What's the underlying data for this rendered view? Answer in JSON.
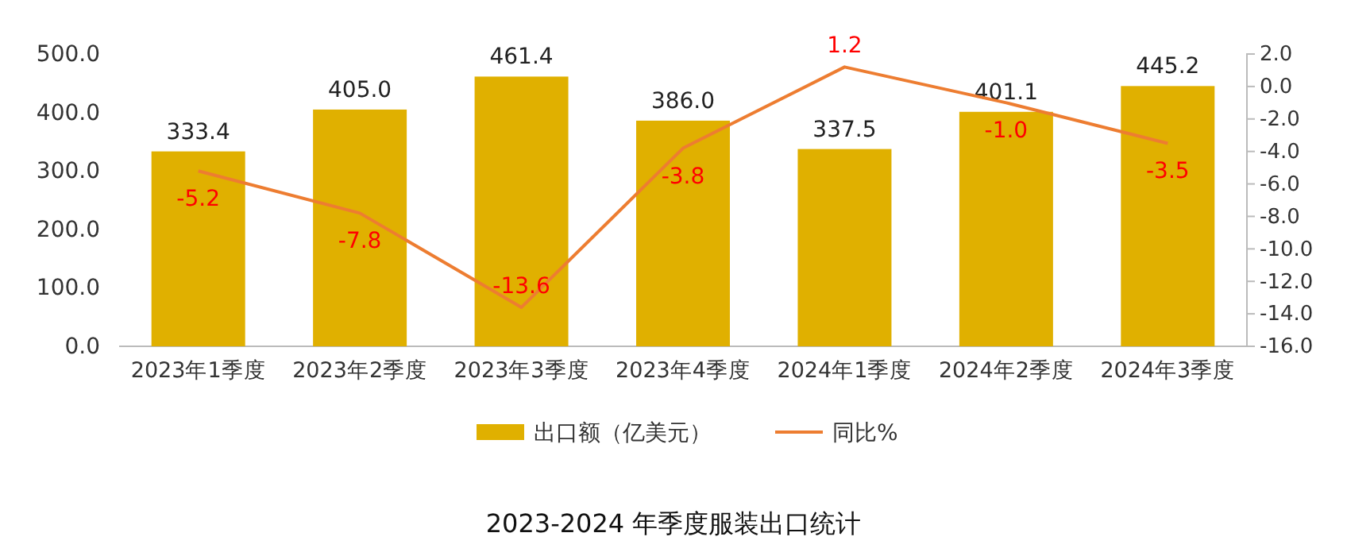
{
  "chart_data": {
    "type": "bar",
    "title": "2023-2024 年季度服装出口统计",
    "categories": [
      "2023年1季度",
      "2023年2季度",
      "2023年3季度",
      "2023年4季度",
      "2024年1季度",
      "2024年2季度",
      "2024年3季度"
    ],
    "series": [
      {
        "name": "出口额（亿美元）",
        "color": "#e0b000",
        "values": [
          333.4,
          405.0,
          461.4,
          386.0,
          337.5,
          401.1,
          445.2
        ],
        "value_labels": [
          "333.4",
          "405.0",
          "461.4",
          "386.0",
          "337.5",
          "401.1",
          "445.2"
        ]
      },
      {
        "name": "同比%",
        "type": "line",
        "axis": "y2",
        "color": "#ed7d31",
        "values": [
          -5.2,
          -7.8,
          -13.6,
          -3.8,
          1.2,
          -1.0,
          -3.5
        ],
        "value_labels": [
          "-5.2",
          "-7.8",
          "-13.6",
          "-3.8",
          "1.2",
          "-1.0",
          "-3.5"
        ]
      }
    ],
    "ylim": [
      0,
      500
    ],
    "yticks": [
      {
        "value": 0,
        "label": "0.0"
      },
      {
        "value": 100,
        "label": "100.0"
      },
      {
        "value": 200,
        "label": "200.0"
      },
      {
        "value": 300,
        "label": "300.0"
      },
      {
        "value": 400,
        "label": "400.0"
      },
      {
        "value": 500,
        "label": "500.0"
      }
    ],
    "y2lim": [
      -16,
      2
    ],
    "y2ticks": [
      {
        "value": -16,
        "label": "-16.0"
      },
      {
        "value": -14,
        "label": "-14.0"
      },
      {
        "value": -12,
        "label": "-12.0"
      },
      {
        "value": -10,
        "label": "-10.0"
      },
      {
        "value": -8,
        "label": "-8.0"
      },
      {
        "value": -6,
        "label": "-6.0"
      },
      {
        "value": -4,
        "label": "-4.0"
      },
      {
        "value": -2,
        "label": "-2.0"
      },
      {
        "value": 0,
        "label": "0.0"
      },
      {
        "value": 2,
        "label": "2.0"
      }
    ],
    "legend": "bottom",
    "grid": false,
    "marker": "none"
  }
}
